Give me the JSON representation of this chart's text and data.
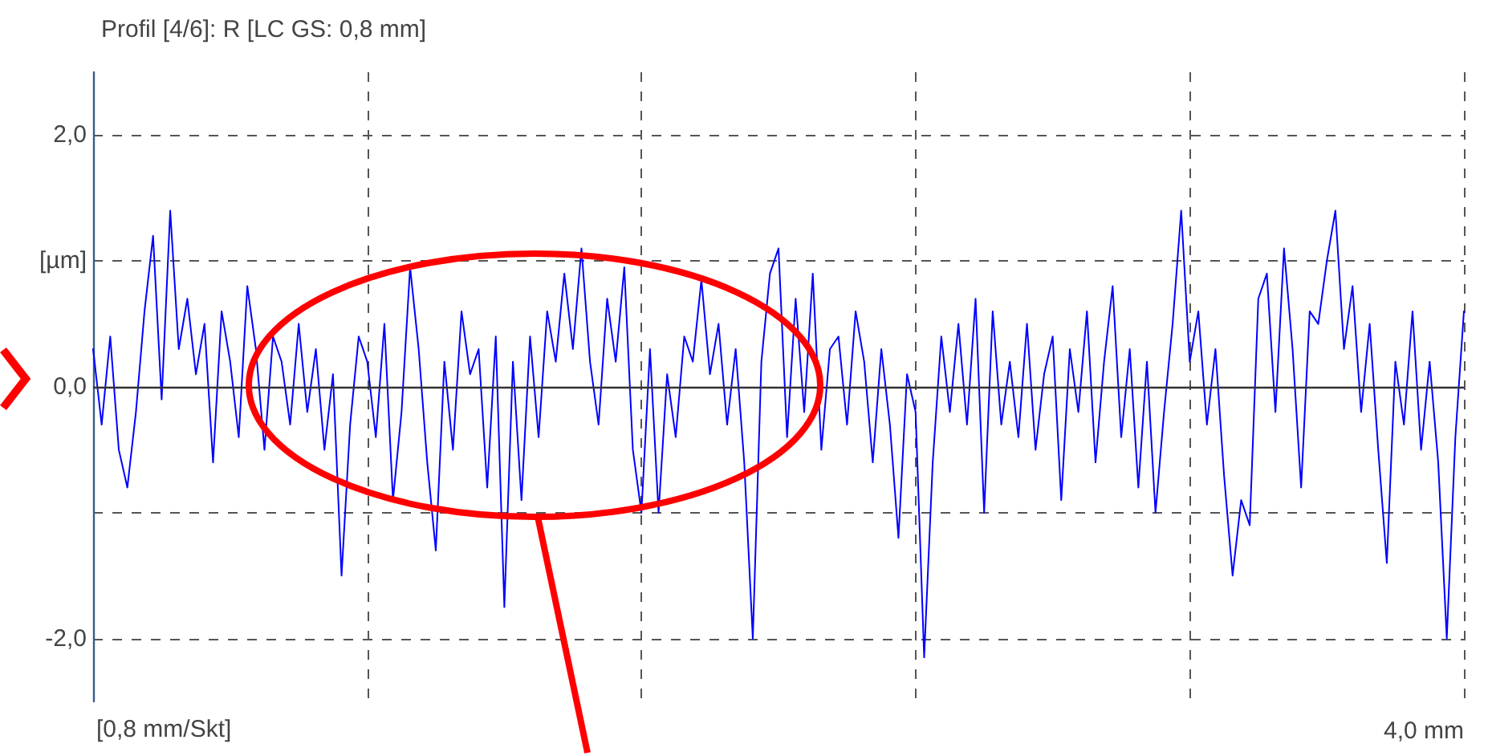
{
  "chart_data": {
    "type": "line",
    "title": "Profil [4/6]: R [LC GS: 0,8 mm]",
    "xlabel": "[0,8 mm/Skt]",
    "annotations": [
      "4,0 mm"
    ],
    "categories": [
      null,
      null,
      null,
      null,
      null,
      null,
      null,
      null,
      null,
      null,
      null,
      null,
      null,
      null,
      null,
      null,
      null,
      null,
      null,
      null,
      null,
      null,
      null,
      null,
      null,
      null,
      null,
      null,
      null,
      null,
      null,
      null,
      null,
      null,
      null,
      null,
      null,
      null,
      null,
      null,
      null,
      null,
      null,
      null,
      null,
      null,
      null,
      null,
      null,
      null,
      null,
      null,
      null,
      null,
      null,
      null,
      null,
      null,
      null,
      null,
      null,
      null,
      null,
      null,
      null,
      null,
      null,
      null,
      null,
      null,
      null,
      null,
      null,
      null,
      null,
      null,
      null,
      null,
      null,
      null,
      null,
      null,
      null,
      null,
      null,
      null,
      null,
      null,
      null,
      null,
      null,
      null,
      null,
      null,
      null,
      null,
      null,
      null,
      null,
      null,
      null,
      null,
      null,
      null,
      null,
      null,
      null,
      null,
      null,
      null,
      null,
      null,
      null,
      null,
      null,
      null,
      null,
      null,
      null,
      null,
      null,
      null,
      null,
      null,
      null,
      null,
      null,
      null,
      null,
      null,
      null,
      null,
      null,
      null,
      null,
      null,
      null,
      null,
      null,
      null,
      null,
      null,
      null,
      null,
      null,
      null,
      null,
      null,
      null,
      null,
      null,
      null,
      null,
      null,
      null,
      null,
      null,
      null,
      null,
      null,
      null
    ],
    "ylim": [
      -2.5,
      2.5
    ],
    "yticks": [
      {
        "value": 2,
        "label": "2,0"
      },
      {
        "value": 1,
        "label": "[µm]"
      },
      {
        "value": 0,
        "label": "0,0"
      },
      {
        "value": -1,
        "label": null
      },
      {
        "value": -2,
        "label": "-2,0"
      }
    ],
    "grid": true,
    "marker": "none",
    "line_style": "solid",
    "ref_lines": [
      {
        "axis": "y",
        "value": 0,
        "color": "#333333",
        "line_style": "solid"
      }
    ],
    "series": [
      {
        "color": "#0000ff",
        "values": [
          0.3,
          -0.3,
          0.4,
          -0.5,
          -0.8,
          -0.2,
          0.6,
          1.2,
          -0.1,
          1.4,
          0.3,
          0.7,
          0.1,
          0.5,
          -0.6,
          0.6,
          0.2,
          -0.4,
          0.8,
          0.3,
          -0.5,
          0.4,
          0.2,
          -0.3,
          0.5,
          -0.2,
          0.3,
          -0.5,
          0.1,
          -1.5,
          -0.3,
          0.4,
          0.2,
          -0.4,
          0.5,
          -0.9,
          -0.2,
          0.95,
          0.3,
          -0.6,
          -1.3,
          0.2,
          -0.5,
          0.6,
          0.1,
          0.3,
          -0.8,
          0.4,
          -1.75,
          0.2,
          -0.9,
          0.4,
          -0.4,
          0.6,
          0.2,
          0.9,
          0.3,
          1.1,
          0.2,
          -0.3,
          0.7,
          0.2,
          0.95,
          -0.5,
          -1.0,
          0.3,
          -1.0,
          0.1,
          -0.4,
          0.4,
          0.2,
          0.85,
          0.1,
          0.5,
          -0.3,
          0.3,
          -0.6,
          -2.0,
          0.2,
          0.9,
          1.1,
          -0.4,
          0.7,
          -0.2,
          0.9,
          -0.5,
          0.3,
          0.4,
          -0.3,
          0.6,
          0.2,
          -0.6,
          0.3,
          -0.3,
          -1.2,
          0.1,
          -0.2,
          -2.15,
          -0.6,
          0.4,
          -0.2,
          0.5,
          -0.3,
          0.7,
          -1.0,
          0.6,
          -0.3,
          0.2,
          -0.4,
          0.5,
          -0.5,
          0.1,
          0.4,
          -0.9,
          0.3,
          -0.2,
          0.6,
          -0.6,
          0.2,
          0.8,
          -0.4,
          0.3,
          -0.8,
          0.2,
          -1.0,
          -0.2,
          0.5,
          1.4,
          0.2,
          0.6,
          -0.3,
          0.3,
          -0.7,
          -1.5,
          -0.9,
          -1.1,
          0.7,
          0.9,
          -0.2,
          1.1,
          0.3,
          -0.8,
          0.6,
          0.5,
          1.0,
          1.4,
          0.3,
          0.8,
          -0.2,
          0.5,
          -0.5,
          -1.4,
          0.2,
          -0.3,
          0.6,
          -0.5,
          0.2,
          -0.6,
          -2.0,
          -0.4,
          0.6
        ]
      }
    ]
  }
}
